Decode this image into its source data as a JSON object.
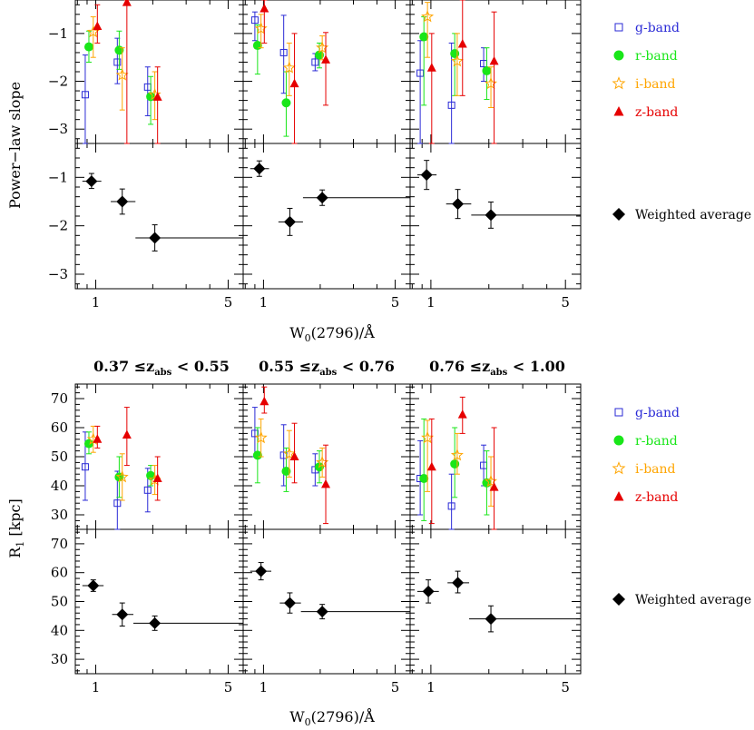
{
  "colors": {
    "g": "#2a2ad6",
    "r": "#19e619",
    "i": "#ffa500",
    "z": "#e60000",
    "avg": "#000000",
    "axis": "#000000"
  },
  "legend": {
    "g": "g-band",
    "r": "r-band",
    "i": "i-band",
    "z": "z-band",
    "avg": "Weighted average"
  },
  "x_axis": {
    "label_main": "W",
    "label_sub": "0",
    "label_rest": "(2796)/Å",
    "scale": "log",
    "xlim": [
      0.78,
      6.0
    ],
    "tick_labels": [
      "1",
      "5"
    ],
    "tick_values": [
      1,
      5
    ]
  },
  "top_block": {
    "ylabel": "Power−law slope",
    "ylim_upper": [
      -3.3,
      -0.3
    ],
    "ylim_lower": [
      -3.3,
      -0.3
    ],
    "yticks": [
      "−1",
      "−2",
      "−3"
    ],
    "ytick_values": [
      -1,
      -2,
      -3
    ]
  },
  "bottom_block": {
    "ylabel_main": "R",
    "ylabel_sub": "1",
    "ylabel_rest": " [kpc]",
    "ylim": [
      25,
      75
    ],
    "yticks": [
      "70",
      "60",
      "50",
      "40",
      "30"
    ],
    "ytick_values": [
      70,
      60,
      50,
      40,
      30
    ]
  },
  "redshift_bins": [
    {
      "pre": "0.37 ≤z",
      "sub": "abs",
      "post": " < 0.55"
    },
    {
      "pre": "0.55 ≤z",
      "sub": "abs",
      "post": " < 0.76"
    },
    {
      "pre": "0.76 ≤z",
      "sub": "abs",
      "post": " < 1.00"
    }
  ],
  "chart_data": [
    {
      "type": "scatter",
      "title": "Power-law slope per band",
      "panels": [
        {
          "g": [
            {
              "x": 0.88,
              "y": -2.28,
              "ylo": -3.3,
              "yhi": -1.45
            },
            {
              "x": 1.3,
              "y": -1.6,
              "ylo": -2.05,
              "yhi": -1.1
            },
            {
              "x": 1.88,
              "y": -2.12,
              "ylo": -2.72,
              "yhi": -1.7
            }
          ],
          "r": [
            {
              "x": 0.92,
              "y": -1.28,
              "ylo": -1.6,
              "yhi": -0.95
            },
            {
              "x": 1.33,
              "y": -1.35,
              "ylo": -1.75,
              "yhi": -0.95
            },
            {
              "x": 1.95,
              "y": -2.32,
              "ylo": -2.9,
              "yhi": -1.9
            }
          ],
          "i": [
            {
              "x": 0.97,
              "y": -0.97,
              "ylo": -1.5,
              "yhi": -0.65
            },
            {
              "x": 1.38,
              "y": -1.87,
              "ylo": -2.6,
              "yhi": -1.3
            },
            {
              "x": 2.05,
              "y": -2.28,
              "ylo": -2.8,
              "yhi": -1.8
            }
          ],
          "z": [
            {
              "x": 1.02,
              "y": -0.85,
              "ylo": -1.2,
              "yhi": -0.4
            },
            {
              "x": 1.46,
              "y": -0.35,
              "ylo": -3.3,
              "yhi": -0.3
            },
            {
              "x": 2.12,
              "y": -2.33,
              "ylo": -3.3,
              "yhi": -1.7
            }
          ]
        },
        {
          "g": [
            {
              "x": 0.9,
              "y": -0.72,
              "ylo": -1.15,
              "yhi": -0.55
            },
            {
              "x": 1.28,
              "y": -1.4,
              "ylo": -2.25,
              "yhi": -0.62
            },
            {
              "x": 1.88,
              "y": -1.6,
              "ylo": -1.78,
              "yhi": -1.42
            }
          ],
          "r": [
            {
              "x": 0.93,
              "y": -1.25,
              "ylo": -1.85,
              "yhi": -0.82
            },
            {
              "x": 1.32,
              "y": -2.45,
              "ylo": -3.15,
              "yhi": -1.8
            },
            {
              "x": 1.98,
              "y": -1.45,
              "ylo": -1.72,
              "yhi": -1.2
            }
          ],
          "i": [
            {
              "x": 0.97,
              "y": -0.9,
              "ylo": -1.3,
              "yhi": -0.6
            },
            {
              "x": 1.37,
              "y": -1.72,
              "ylo": -2.3,
              "yhi": -1.2
            },
            {
              "x": 2.05,
              "y": -1.3,
              "ylo": -1.55,
              "yhi": -1.05
            }
          ],
          "z": [
            {
              "x": 1.01,
              "y": -0.48,
              "ylo": -1.2,
              "yhi": -0.3
            },
            {
              "x": 1.46,
              "y": -2.05,
              "ylo": -3.3,
              "yhi": -1.0
            },
            {
              "x": 2.14,
              "y": -1.55,
              "ylo": -2.5,
              "yhi": -0.98
            }
          ]
        },
        {
          "g": [
            {
              "x": 0.88,
              "y": -1.83,
              "ylo": -3.3,
              "yhi": -1.15
            },
            {
              "x": 1.28,
              "y": -2.5,
              "ylo": -3.3,
              "yhi": -1.2
            },
            {
              "x": 1.88,
              "y": -1.63,
              "ylo": -2.0,
              "yhi": -1.3
            }
          ],
          "r": [
            {
              "x": 0.92,
              "y": -1.07,
              "ylo": -2.5,
              "yhi": -0.65
            },
            {
              "x": 1.33,
              "y": -1.42,
              "ylo": -2.3,
              "yhi": -1.0
            },
            {
              "x": 1.95,
              "y": -1.78,
              "ylo": -2.38,
              "yhi": -1.3
            }
          ],
          "i": [
            {
              "x": 0.96,
              "y": -0.65,
              "ylo": -1.5,
              "yhi": -0.35
            },
            {
              "x": 1.37,
              "y": -1.58,
              "ylo": -2.3,
              "yhi": -1.0
            },
            {
              "x": 2.05,
              "y": -2.05,
              "ylo": -2.55,
              "yhi": -1.7
            }
          ],
          "z": [
            {
              "x": 1.01,
              "y": -1.72,
              "ylo": -3.3,
              "yhi": -1.0
            },
            {
              "x": 1.46,
              "y": -1.22,
              "ylo": -2.3,
              "yhi": -0.3
            },
            {
              "x": 2.13,
              "y": -1.58,
              "ylo": -3.3,
              "yhi": -0.55
            }
          ]
        }
      ]
    },
    {
      "type": "scatter",
      "title": "Power-law slope weighted average",
      "panels": [
        {
          "avg": [
            {
              "x": 0.95,
              "y": -1.08,
              "xlo": 0.85,
              "xhi": 1.07,
              "ylo": -1.23,
              "yhi": -0.92
            },
            {
              "x": 1.38,
              "y": -1.5,
              "xlo": 1.2,
              "xhi": 1.62,
              "ylo": -1.76,
              "yhi": -1.24
            },
            {
              "x": 2.05,
              "y": -2.25,
              "xlo": 1.62,
              "xhi": 6.0,
              "ylo": -2.52,
              "yhi": -1.98
            }
          ]
        },
        {
          "avg": [
            {
              "x": 0.95,
              "y": -0.82,
              "xlo": 0.85,
              "xhi": 1.07,
              "ylo": -0.98,
              "yhi": -0.66
            },
            {
              "x": 1.38,
              "y": -1.92,
              "xlo": 1.2,
              "xhi": 1.62,
              "ylo": -2.2,
              "yhi": -1.64
            },
            {
              "x": 2.05,
              "y": -1.42,
              "xlo": 1.62,
              "xhi": 6.0,
              "ylo": -1.58,
              "yhi": -1.26
            }
          ]
        },
        {
          "avg": [
            {
              "x": 0.95,
              "y": -0.95,
              "xlo": 0.85,
              "xhi": 1.07,
              "ylo": -1.25,
              "yhi": -0.65
            },
            {
              "x": 1.38,
              "y": -1.55,
              "xlo": 1.2,
              "xhi": 1.62,
              "ylo": -1.85,
              "yhi": -1.25
            },
            {
              "x": 2.05,
              "y": -1.78,
              "xlo": 1.62,
              "xhi": 6.0,
              "ylo": -2.05,
              "yhi": -1.51
            }
          ]
        }
      ]
    },
    {
      "type": "scatter",
      "title": "R1 per band",
      "panels": [
        {
          "g": [
            {
              "x": 0.88,
              "y": 46.5,
              "ylo": 35,
              "yhi": 58.5
            },
            {
              "x": 1.3,
              "y": 34,
              "ylo": 25,
              "yhi": 45
            },
            {
              "x": 1.88,
              "y": 38.5,
              "ylo": 31,
              "yhi": 46
            }
          ],
          "r": [
            {
              "x": 0.92,
              "y": 54.5,
              "ylo": 51,
              "yhi": 58.5
            },
            {
              "x": 1.33,
              "y": 43,
              "ylo": 36,
              "yhi": 50
            },
            {
              "x": 1.95,
              "y": 43.5,
              "ylo": 40,
              "yhi": 47
            }
          ],
          "i": [
            {
              "x": 0.97,
              "y": 56,
              "ylo": 51.5,
              "yhi": 60.5
            },
            {
              "x": 1.38,
              "y": 43,
              "ylo": 35,
              "yhi": 51
            },
            {
              "x": 2.05,
              "y": 42,
              "ylo": 37,
              "yhi": 47
            }
          ],
          "z": [
            {
              "x": 1.02,
              "y": 56,
              "ylo": 53,
              "yhi": 60.5
            },
            {
              "x": 1.46,
              "y": 57.5,
              "ylo": 47,
              "yhi": 67
            },
            {
              "x": 2.12,
              "y": 42.5,
              "ylo": 35,
              "yhi": 50
            }
          ]
        },
        {
          "g": [
            {
              "x": 0.9,
              "y": 58,
              "ylo": 50,
              "yhi": 67
            },
            {
              "x": 1.28,
              "y": 50.5,
              "ylo": 40,
              "yhi": 61
            },
            {
              "x": 1.88,
              "y": 45.5,
              "ylo": 40,
              "yhi": 51
            }
          ],
          "r": [
            {
              "x": 0.93,
              "y": 50.5,
              "ylo": 41,
              "yhi": 60
            },
            {
              "x": 1.32,
              "y": 45,
              "ylo": 38,
              "yhi": 53
            },
            {
              "x": 1.98,
              "y": 46.5,
              "ylo": 41,
              "yhi": 52
            }
          ],
          "i": [
            {
              "x": 0.97,
              "y": 56.5,
              "ylo": 50,
              "yhi": 63
            },
            {
              "x": 1.37,
              "y": 51,
              "ylo": 43,
              "yhi": 59
            },
            {
              "x": 2.05,
              "y": 48,
              "ylo": 43,
              "yhi": 53
            }
          ],
          "z": [
            {
              "x": 1.01,
              "y": 69,
              "ylo": 65,
              "yhi": 74
            },
            {
              "x": 1.46,
              "y": 50,
              "ylo": 41,
              "yhi": 61.5
            },
            {
              "x": 2.14,
              "y": 40.5,
              "ylo": 27,
              "yhi": 54
            }
          ]
        },
        {
          "g": [
            {
              "x": 0.88,
              "y": 42.5,
              "ylo": 30,
              "yhi": 55.5
            },
            {
              "x": 1.28,
              "y": 33,
              "ylo": 25,
              "yhi": 44
            },
            {
              "x": 1.88,
              "y": 47,
              "ylo": 40,
              "yhi": 54
            }
          ],
          "r": [
            {
              "x": 0.92,
              "y": 42.5,
              "ylo": 28,
              "yhi": 63
            },
            {
              "x": 1.33,
              "y": 47.5,
              "ylo": 36,
              "yhi": 60
            },
            {
              "x": 1.95,
              "y": 41,
              "ylo": 30,
              "yhi": 52
            }
          ],
          "i": [
            {
              "x": 0.96,
              "y": 56.5,
              "ylo": 38,
              "yhi": 62.5
            },
            {
              "x": 1.37,
              "y": 50.5,
              "ylo": 44,
              "yhi": 58
            },
            {
              "x": 2.05,
              "y": 41.5,
              "ylo": 33,
              "yhi": 50
            }
          ],
          "z": [
            {
              "x": 1.01,
              "y": 46.5,
              "ylo": 27,
              "yhi": 63
            },
            {
              "x": 1.46,
              "y": 64.5,
              "ylo": 58,
              "yhi": 70.5
            },
            {
              "x": 2.13,
              "y": 39.5,
              "ylo": 25,
              "yhi": 60
            }
          ]
        }
      ]
    },
    {
      "type": "scatter",
      "title": "R1 weighted average",
      "panels": [
        {
          "avg": [
            {
              "x": 0.97,
              "y": 55.5,
              "xlo": 0.85,
              "xhi": 1.1,
              "ylo": 53.5,
              "yhi": 57.5
            },
            {
              "x": 1.38,
              "y": 45.5,
              "xlo": 1.22,
              "xhi": 1.58,
              "ylo": 41.5,
              "yhi": 49.5
            },
            {
              "x": 2.05,
              "y": 42.5,
              "xlo": 1.58,
              "xhi": 6.0,
              "ylo": 40,
              "yhi": 45
            }
          ]
        },
        {
          "avg": [
            {
              "x": 0.97,
              "y": 60.5,
              "xlo": 0.85,
              "xhi": 1.1,
              "ylo": 57.5,
              "yhi": 63.5
            },
            {
              "x": 1.38,
              "y": 49.5,
              "xlo": 1.22,
              "xhi": 1.58,
              "ylo": 46,
              "yhi": 53
            },
            {
              "x": 2.05,
              "y": 46.5,
              "xlo": 1.58,
              "xhi": 6.0,
              "ylo": 44,
              "yhi": 49
            }
          ]
        },
        {
          "avg": [
            {
              "x": 0.97,
              "y": 53.5,
              "xlo": 0.85,
              "xhi": 1.1,
              "ylo": 49.5,
              "yhi": 57.5
            },
            {
              "x": 1.38,
              "y": 56.5,
              "xlo": 1.22,
              "xhi": 1.58,
              "ylo": 53,
              "yhi": 60.5
            },
            {
              "x": 2.05,
              "y": 44,
              "xlo": 1.58,
              "xhi": 6.0,
              "ylo": 39.5,
              "yhi": 48.5
            }
          ]
        }
      ]
    }
  ]
}
